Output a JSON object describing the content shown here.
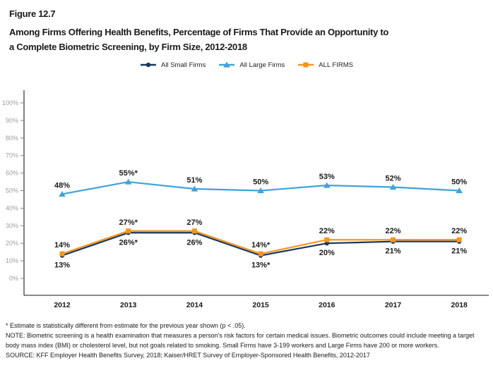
{
  "figure": {
    "label": "Figure 12.7",
    "title_line1": "Among Firms Offering Health Benefits, Percentage of Firms That Provide an Opportunity to",
    "title_line2": "a Complete Biometric Screening, by Firm Size, 2012-2018"
  },
  "chart_data": {
    "type": "line",
    "x": [
      "2012",
      "2013",
      "2014",
      "2015",
      "2016",
      "2017",
      "2018"
    ],
    "series": [
      {
        "name": "All Small Firms",
        "color": "#17375E",
        "marker": "circle",
        "values": [
          13,
          26,
          26,
          13,
          20,
          21,
          21
        ],
        "labels": [
          "13%",
          "26%*",
          "26%",
          "13%*",
          "20%",
          "21%",
          "21%"
        ],
        "label_position": "below"
      },
      {
        "name": "All Large Firms",
        "color": "#3FA2DC",
        "marker": "triangle",
        "values": [
          48,
          55,
          51,
          50,
          53,
          52,
          50
        ],
        "labels": [
          "48%",
          "55%*",
          "51%",
          "50%",
          "53%",
          "52%",
          "50%"
        ],
        "label_position": "above"
      },
      {
        "name": "ALL FIRMS",
        "color": "#F7941E",
        "marker": "square",
        "values": [
          14,
          27,
          27,
          14,
          22,
          22,
          22
        ],
        "labels": [
          "14%",
          "27%*",
          "27%",
          "14%*",
          "22%",
          "22%",
          "22%"
        ],
        "label_position": "above"
      }
    ],
    "ylim": [
      0,
      100
    ],
    "yticks": [
      "0%",
      "10%",
      "20%",
      "30%",
      "40%",
      "50%",
      "60%",
      "70%",
      "80%",
      "90%",
      "100%"
    ],
    "grid": false,
    "legend_position": "top",
    "axis_color": "#404040",
    "tick_mark_color": "#808080",
    "tick_label_color": "#9d9d9d"
  },
  "footnotes": {
    "significance": "* Estimate is statistically different from estimate for the previous year shown (p < .05).",
    "note": "NOTE: Biometric screening is a health examination that measures a person's risk factors for certain medical issues. Biometric outcomes could include meeting a target body mass index (BMI) or cholesterol level, but not goals related to smoking. Small Firms have 3-199 workers and Large Firms have 200 or more workers.",
    "source": "SOURCE: KFF Employer Health Benefits Survey, 2018; Kaiser/HRET Survey of Employer-Sponsored Health Benefits, 2012-2017"
  }
}
